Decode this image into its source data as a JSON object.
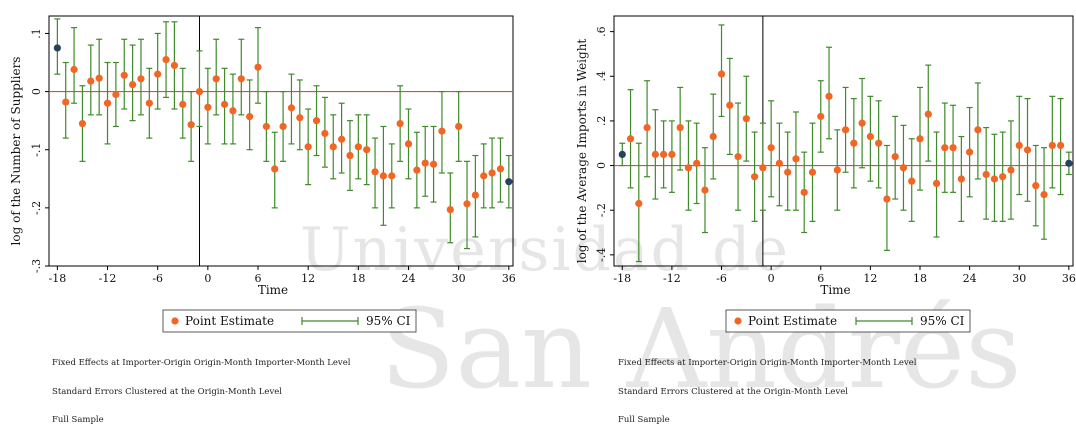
{
  "colors": {
    "point": "#f26522",
    "endpoint": "#27425e",
    "ci": "#3f8a2a",
    "zero_line": "#e8453c",
    "axis": "#000000"
  },
  "chart_data": [
    {
      "type": "scatter",
      "ylabel": "log of the Number of Suppliers",
      "xlabel": "Time",
      "xlim": [
        -19,
        36.5
      ],
      "ylim": [
        -0.3,
        0.13
      ],
      "xticks": [
        -18,
        -12,
        -6,
        0,
        6,
        12,
        18,
        24,
        30,
        36
      ],
      "yticks": [
        -0.3,
        -0.2,
        -0.1,
        0,
        0.1
      ],
      "ytick_labels": [
        "-.3",
        "-.2",
        "-.1",
        "0",
        ".1"
      ],
      "vline_x": -1,
      "hline_y": 0,
      "legend": {
        "point_label": "Point Estimate",
        "ci_label": "95% CI",
        "position": "bottom"
      },
      "notes": [
        "Fixed Effects at Importer-Origin Origin-Month Importer-Month Level",
        "Standard Errors Clustered at the Origin-Month Level",
        "Full Sample"
      ],
      "highlighted_x": [
        -18,
        36
      ],
      "x": [
        -18,
        -17,
        -16,
        -15,
        -14,
        -13,
        -12,
        -11,
        -10,
        -9,
        -8,
        -7,
        -6,
        -5,
        -4,
        -3,
        -2,
        -1,
        0,
        1,
        2,
        3,
        4,
        5,
        6,
        7,
        8,
        9,
        10,
        11,
        12,
        13,
        14,
        15,
        16,
        17,
        18,
        19,
        20,
        21,
        22,
        23,
        24,
        25,
        26,
        27,
        28,
        29,
        30,
        31,
        32,
        33,
        34,
        35,
        36
      ],
      "point_estimate": [
        0.075,
        -0.018,
        0.038,
        -0.055,
        0.018,
        0.023,
        -0.02,
        -0.005,
        0.028,
        0.012,
        0.022,
        -0.02,
        0.03,
        0.055,
        0.045,
        -0.022,
        -0.057,
        0.0,
        -0.027,
        0.022,
        -0.022,
        -0.033,
        0.022,
        -0.043,
        0.042,
        -0.06,
        -0.133,
        -0.06,
        -0.028,
        -0.045,
        -0.095,
        -0.05,
        -0.072,
        -0.095,
        -0.082,
        -0.11,
        -0.095,
        -0.1,
        -0.138,
        -0.145,
        -0.145,
        -0.055,
        -0.09,
        -0.135,
        -0.123,
        -0.125,
        -0.068,
        -0.203,
        -0.06,
        -0.193,
        -0.178,
        -0.145,
        -0.14,
        -0.133,
        -0.155
      ],
      "ci_low": [
        0.03,
        -0.08,
        -0.02,
        -0.12,
        -0.04,
        -0.04,
        -0.09,
        -0.06,
        -0.03,
        -0.05,
        -0.04,
        -0.08,
        -0.03,
        -0.01,
        -0.03,
        -0.08,
        -0.12,
        -0.06,
        -0.09,
        -0.04,
        -0.09,
        -0.09,
        -0.04,
        -0.1,
        -0.02,
        -0.12,
        -0.2,
        -0.12,
        -0.09,
        -0.1,
        -0.16,
        -0.11,
        -0.13,
        -0.15,
        -0.14,
        -0.17,
        -0.15,
        -0.16,
        -0.2,
        -0.23,
        -0.2,
        -0.12,
        -0.15,
        -0.2,
        -0.18,
        -0.19,
        -0.14,
        -0.26,
        -0.12,
        -0.27,
        -0.25,
        -0.2,
        -0.2,
        -0.19,
        -0.2
      ],
      "ci_high": [
        0.125,
        0.05,
        0.11,
        0.01,
        0.08,
        0.09,
        0.05,
        0.05,
        0.09,
        0.08,
        0.09,
        0.04,
        0.1,
        0.12,
        0.12,
        0.04,
        0.0,
        0.07,
        0.04,
        0.09,
        0.04,
        0.03,
        0.09,
        0.02,
        0.11,
        0.0,
        -0.07,
        0.0,
        0.03,
        0.02,
        -0.03,
        0.01,
        -0.01,
        -0.04,
        -0.02,
        -0.05,
        -0.04,
        -0.04,
        -0.08,
        -0.06,
        -0.09,
        0.01,
        -0.03,
        -0.07,
        -0.06,
        -0.06,
        0.0,
        -0.14,
        0.0,
        -0.12,
        -0.11,
        -0.09,
        -0.08,
        -0.08,
        -0.11
      ]
    },
    {
      "type": "scatter",
      "ylabel": "log of the Average Imports in Weight",
      "xlabel": "Time",
      "xlim": [
        -19,
        36.5
      ],
      "ylim": [
        -0.45,
        0.67
      ],
      "xticks": [
        -18,
        -12,
        -6,
        0,
        6,
        12,
        18,
        24,
        30,
        36
      ],
      "yticks": [
        -0.4,
        -0.2,
        0,
        0.2,
        0.4,
        0.6
      ],
      "ytick_labels": [
        "-.4",
        "-.2",
        "0",
        ".2",
        ".4",
        ".6"
      ],
      "vline_x": -1,
      "hline_y": 0,
      "legend": {
        "point_label": "Point Estimate",
        "ci_label": "95% CI",
        "position": "bottom"
      },
      "notes": [
        "Fixed Effects at Importer-Origin Origin-Month Importer-Month Level",
        "Standard Errors Clustered at the Origin-Month Level",
        "Full Sample"
      ],
      "highlighted_x": [
        -18,
        36
      ],
      "x": [
        -18,
        -17,
        -16,
        -15,
        -14,
        -13,
        -12,
        -11,
        -10,
        -9,
        -8,
        -7,
        -6,
        -5,
        -4,
        -3,
        -2,
        -1,
        0,
        1,
        2,
        3,
        4,
        5,
        6,
        7,
        8,
        9,
        10,
        11,
        12,
        13,
        14,
        15,
        16,
        17,
        18,
        19,
        20,
        21,
        22,
        23,
        24,
        25,
        26,
        27,
        28,
        29,
        30,
        31,
        32,
        33,
        34,
        35,
        36
      ],
      "point_estimate": [
        0.05,
        0.12,
        -0.17,
        0.17,
        0.05,
        0.05,
        0.05,
        0.17,
        -0.01,
        0.01,
        -0.11,
        0.13,
        0.41,
        0.27,
        0.04,
        0.21,
        -0.05,
        -0.01,
        0.08,
        0.01,
        -0.03,
        0.03,
        -0.12,
        -0.03,
        0.22,
        0.31,
        -0.02,
        0.16,
        0.1,
        0.19,
        0.13,
        0.1,
        -0.15,
        0.04,
        -0.01,
        -0.07,
        0.12,
        0.23,
        -0.08,
        0.08,
        0.08,
        -0.06,
        0.06,
        0.16,
        -0.04,
        -0.06,
        -0.05,
        -0.02,
        0.09,
        0.07,
        -0.09,
        -0.13,
        0.09,
        0.09,
        0.01
      ],
      "ci_low": [
        0.0,
        -0.1,
        -0.43,
        -0.05,
        -0.15,
        -0.1,
        -0.12,
        -0.02,
        -0.2,
        -0.17,
        -0.3,
        -0.06,
        0.22,
        0.05,
        -0.2,
        0.02,
        -0.25,
        -0.2,
        -0.14,
        -0.18,
        -0.2,
        -0.2,
        -0.3,
        -0.25,
        0.06,
        0.12,
        -0.2,
        -0.03,
        -0.1,
        -0.01,
        -0.07,
        -0.1,
        -0.38,
        -0.15,
        -0.2,
        -0.25,
        -0.11,
        0.02,
        -0.32,
        -0.12,
        -0.12,
        -0.25,
        -0.14,
        -0.06,
        -0.24,
        -0.25,
        -0.25,
        -0.24,
        -0.13,
        -0.16,
        -0.27,
        -0.33,
        -0.1,
        -0.13,
        -0.04
      ],
      "ci_high": [
        0.1,
        0.34,
        0.1,
        0.38,
        0.25,
        0.2,
        0.2,
        0.35,
        0.2,
        0.19,
        0.08,
        0.32,
        0.63,
        0.48,
        0.28,
        0.4,
        0.15,
        0.19,
        0.29,
        0.19,
        0.15,
        0.24,
        0.06,
        0.19,
        0.38,
        0.53,
        0.16,
        0.35,
        0.3,
        0.39,
        0.31,
        0.29,
        0.09,
        0.22,
        0.18,
        0.12,
        0.35,
        0.45,
        0.15,
        0.28,
        0.27,
        0.13,
        0.26,
        0.37,
        0.17,
        0.14,
        0.15,
        0.2,
        0.31,
        0.3,
        0.09,
        0.08,
        0.31,
        0.3,
        0.06
      ]
    }
  ]
}
